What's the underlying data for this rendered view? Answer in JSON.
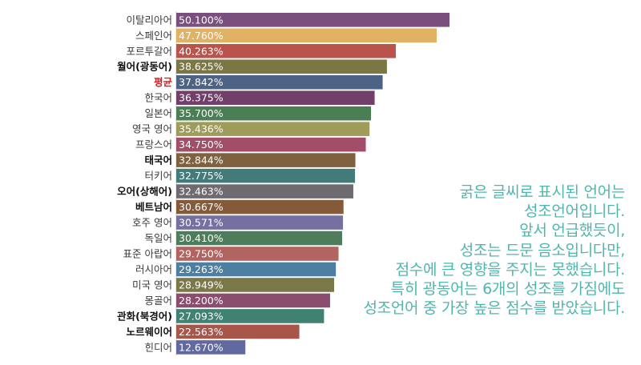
{
  "chart_data": {
    "type": "bar",
    "orientation": "horizontal",
    "categories": [
      "이탈리아어",
      "스페인어",
      "포르투갈어",
      "월어(광동어)",
      "평균",
      "한국어",
      "일본어",
      "영국 영어",
      "프랑스어",
      "태국어",
      "터키어",
      "오어(상해어)",
      "베트남어",
      "호주 영어",
      "독일어",
      "표준 아랍어",
      "러시아어",
      "미국 영어",
      "몽골어",
      "관화(북경어)",
      "노르웨이어",
      "힌디어"
    ],
    "values": [
      50.1,
      47.76,
      40.263,
      38.625,
      37.842,
      36.375,
      35.7,
      35.436,
      34.75,
      32.844,
      32.775,
      32.463,
      30.667,
      30.571,
      30.41,
      29.75,
      29.263,
      28.949,
      28.2,
      27.093,
      22.563,
      12.67
    ],
    "value_labels": [
      "50.100%",
      "47.760%",
      "40.263%",
      "38.625%",
      "37.842%",
      "36.375%",
      "35.700%",
      "35.436%",
      "34.750%",
      "32.844%",
      "32.775%",
      "32.463%",
      "30.667%",
      "30.571%",
      "30.410%",
      "29.750%",
      "29.263%",
      "28.949%",
      "28.200%",
      "27.093%",
      "22.563%",
      "12.670%"
    ],
    "bold_categories": [
      "월어(광동어)",
      "태국어",
      "오어(상해어)",
      "베트남어",
      "관화(북경어)",
      "노르웨이어"
    ],
    "highlight_category": "평균",
    "colors": [
      "#7b4f7d",
      "#e2b264",
      "#b9544d",
      "#7b7744",
      "#4d6385",
      "#713f6a",
      "#4b7e55",
      "#9f9b5a",
      "#a34e68",
      "#7f6140",
      "#437b7b",
      "#6d6a70",
      "#855a38",
      "#7570a1",
      "#4d7d5a",
      "#b26460",
      "#4f7fa0",
      "#7a7849",
      "#8b4d6e",
      "#3f8272",
      "#a8554a",
      "#6268a0"
    ],
    "highlight_color": "#d42020",
    "xlim": [
      0,
      52
    ],
    "grid": false,
    "legend": "none"
  },
  "annotation": {
    "lines": [
      "굵은 글씨로 표시된 언어는",
      "성조언어입니다.",
      "앞서 언급했듯이,",
      "성조는 드문 음소입니다만,",
      "점수에 큰 영향을 주지는 못했습니다.",
      "특히 광동어는 6개의 성조를 가짐에도",
      "성조언어 중 가장 높은 점수를 받았습니다."
    ],
    "color": "#4fb6ad"
  }
}
